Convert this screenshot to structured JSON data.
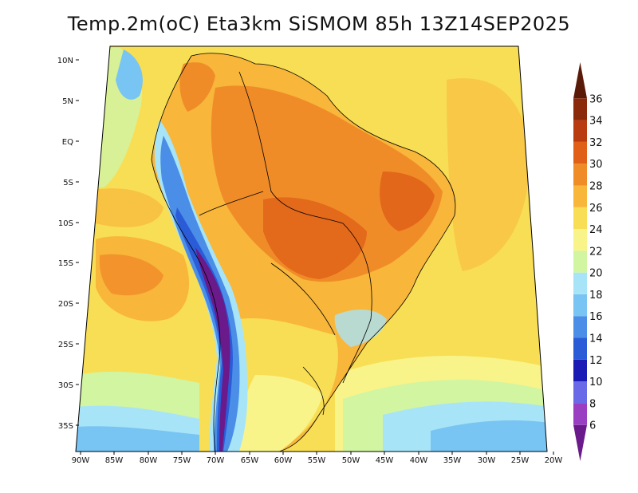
{
  "title": "Temp.2m(oC) Eta3km SiSMOM 85h 13Z14SEP2025",
  "map": {
    "variable": "2 m air temperature",
    "units": "oC",
    "region": "South America",
    "lat_range": [
      -38,
      12
    ],
    "lon_range": [
      -90,
      -20
    ],
    "lat_labels": [
      "10N",
      "5N",
      "EQ",
      "5S",
      "10S",
      "15S",
      "20S",
      "25S",
      "30S",
      "35S"
    ],
    "lon_labels": [
      "90W",
      "85W",
      "80W",
      "75W",
      "70W",
      "65W",
      "60W",
      "55W",
      "50W",
      "45W",
      "40W",
      "35W",
      "30W",
      "25W",
      "20W"
    ]
  },
  "colorbar": {
    "levels": [
      "6",
      "8",
      "10",
      "12",
      "14",
      "16",
      "18",
      "20",
      "22",
      "24",
      "26",
      "28",
      "30",
      "32",
      "34",
      "36"
    ],
    "colors": [
      "#6a1a8a",
      "#9b3fc2",
      "#6a6ae8",
      "#1a1ab4",
      "#2a5cd8",
      "#4a8ee8",
      "#78c4f2",
      "#a8e4f8",
      "#d2f5a2",
      "#f8f48a",
      "#f8de54",
      "#f8b63a",
      "#f08c28",
      "#e06018",
      "#b83c10",
      "#8a2a0a",
      "#5a1a08"
    ]
  }
}
